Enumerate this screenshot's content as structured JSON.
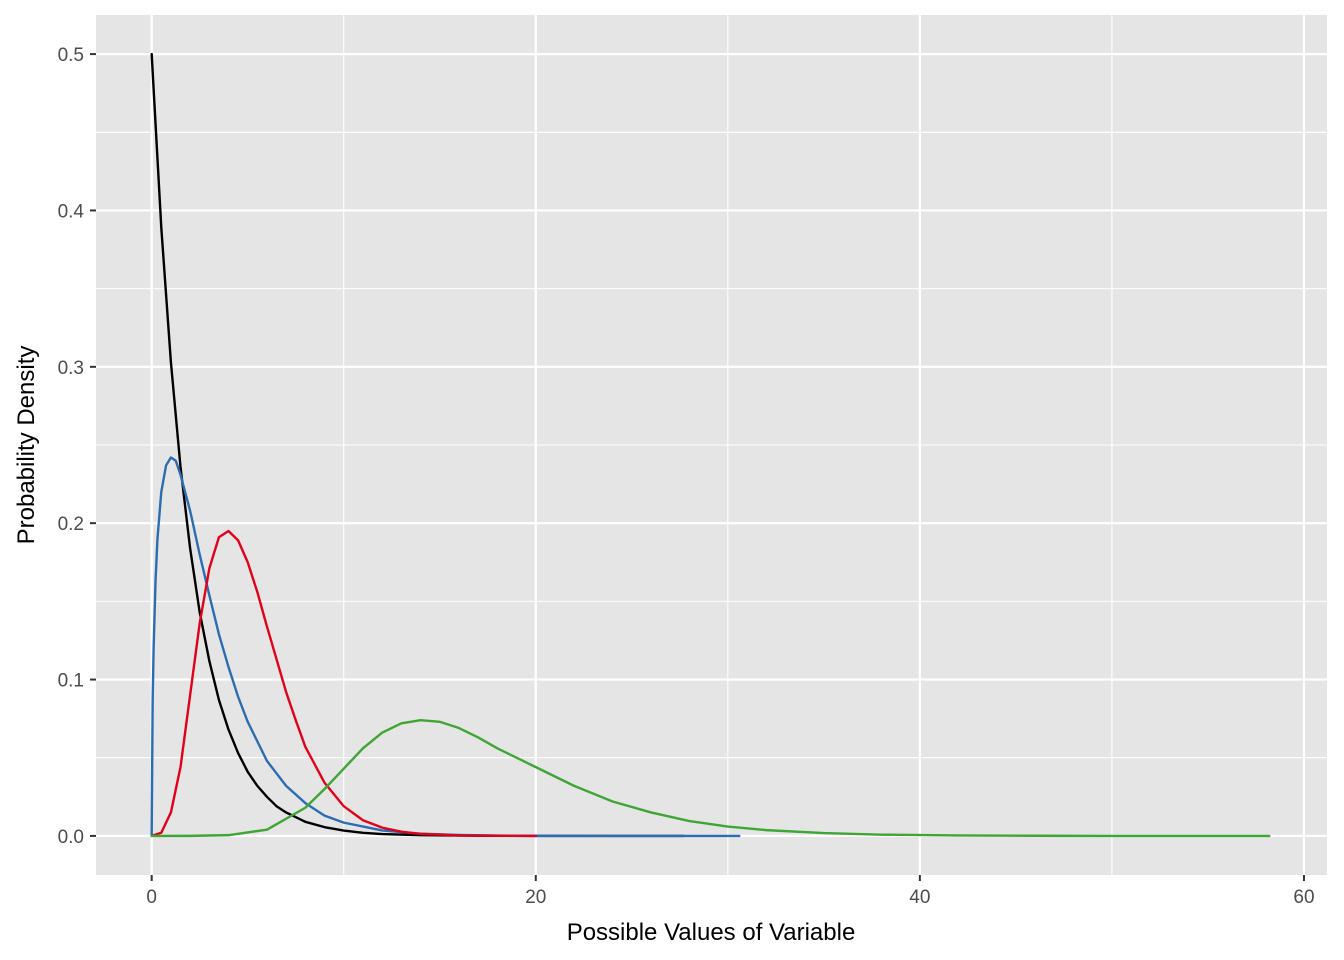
{
  "chart_data": {
    "type": "line",
    "title": "",
    "xlabel": "Possible Values of Variable",
    "ylabel": "Probability Density",
    "xlim": [
      -2.9,
      61.2
    ],
    "ylim": [
      -0.025,
      0.525
    ],
    "x_ticks": [
      0,
      20,
      40,
      60
    ],
    "x_tick_labels": [
      "0",
      "20",
      "40",
      "60"
    ],
    "y_ticks": [
      0.0,
      0.1,
      0.2,
      0.3,
      0.4,
      0.5
    ],
    "y_tick_labels": [
      "0.0",
      "0.1",
      "0.2",
      "0.3",
      "0.4",
      "0.5"
    ],
    "grid": true,
    "legend": "none",
    "background_color": "#e5e5e5",
    "grid_color": "#ffffff",
    "series": [
      {
        "color": "#000000",
        "x": [
          0,
          0.5,
          1,
          1.5,
          2,
          2.5,
          3,
          3.5,
          4,
          4.5,
          5,
          5.5,
          6,
          6.5,
          7,
          8,
          9,
          10,
          11,
          12,
          14,
          16,
          18,
          20,
          22,
          24,
          26,
          27.7
        ],
        "y": [
          0.5,
          0.389,
          0.303,
          0.236,
          0.184,
          0.143,
          0.112,
          0.087,
          0.068,
          0.053,
          0.041,
          0.032,
          0.025,
          0.019,
          0.015,
          0.009,
          0.0056,
          0.0034,
          0.002,
          0.0012,
          0.0005,
          0.0002,
          0.0001,
          2e-05,
          0.0,
          0.0,
          0.0,
          0.0
        ]
      },
      {
        "color": "#2c6db0",
        "x": [
          0,
          0.05,
          0.1,
          0.2,
          0.3,
          0.5,
          0.75,
          1,
          1.25,
          1.5,
          2,
          2.5,
          3,
          3.5,
          4,
          4.5,
          5,
          6,
          7,
          8,
          9,
          10,
          12,
          14,
          16,
          18,
          20,
          24,
          28,
          30.6
        ],
        "y": [
          0,
          0.086,
          0.12,
          0.163,
          0.19,
          0.22,
          0.237,
          0.242,
          0.24,
          0.231,
          0.208,
          0.18,
          0.154,
          0.129,
          0.108,
          0.089,
          0.073,
          0.048,
          0.032,
          0.021,
          0.013,
          0.0085,
          0.0035,
          0.0014,
          0.0006,
          0.0002,
          0.0001,
          0.0,
          0.0,
          0.0
        ]
      },
      {
        "color": "#e0001b",
        "x": [
          0,
          0.5,
          1,
          1.5,
          2,
          2.5,
          3,
          3.5,
          4,
          4.5,
          5,
          5.5,
          6,
          6.5,
          7,
          7.5,
          8,
          9,
          10,
          11,
          12,
          13,
          14,
          16,
          18,
          20
        ],
        "y": [
          0,
          0.002,
          0.015,
          0.044,
          0.09,
          0.136,
          0.171,
          0.191,
          0.195,
          0.189,
          0.175,
          0.156,
          0.134,
          0.113,
          0.092,
          0.074,
          0.057,
          0.034,
          0.019,
          0.01,
          0.0053,
          0.0027,
          0.0013,
          0.0003,
          0.0001,
          0.0
        ]
      },
      {
        "color": "#3fa535",
        "x": [
          0,
          2,
          4,
          6,
          8,
          9,
          10,
          11,
          12,
          13,
          14,
          15,
          16,
          17,
          18,
          19,
          20,
          22,
          24,
          26,
          28,
          30,
          32,
          35,
          38,
          42,
          46,
          50,
          54,
          58.2
        ],
        "y": [
          0,
          2e-05,
          0.0005,
          0.004,
          0.018,
          0.03,
          0.043,
          0.056,
          0.066,
          0.072,
          0.074,
          0.073,
          0.069,
          0.063,
          0.056,
          0.05,
          0.044,
          0.032,
          0.022,
          0.015,
          0.0095,
          0.006,
          0.0037,
          0.0018,
          0.0008,
          0.0003,
          0.0001,
          0.0,
          0.0,
          0.0
        ]
      }
    ]
  }
}
